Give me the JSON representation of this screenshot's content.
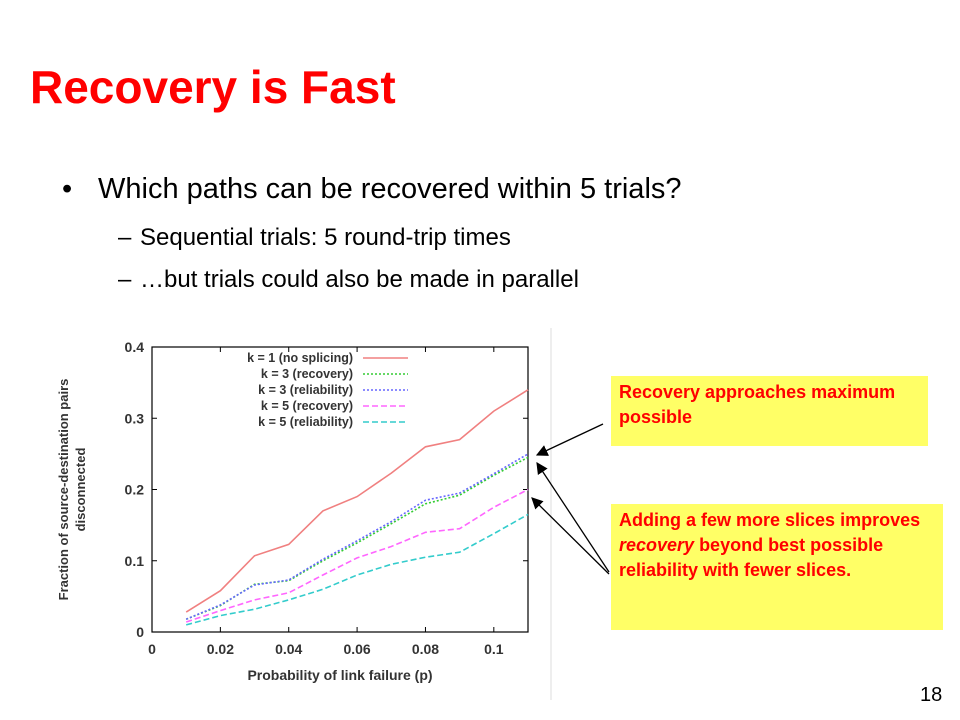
{
  "slide": {
    "title": "Recovery is Fast",
    "bullet": "Which paths can be recovered within 5 trials?",
    "bullet_marker": "•",
    "sub_marker": "–",
    "subbullets": [
      "Sequential trials: 5 round-trip times",
      "…but trials could also be made in parallel"
    ],
    "callout1": "Recovery approaches maximum possible",
    "callout2_pre": "Adding a few more slices improves ",
    "callout2_em": "recovery",
    "callout2_post": " beyond best possible reliability with fewer slices.",
    "page_number": "18"
  },
  "chart_data": {
    "type": "line",
    "xlabel": "Probability of link failure (p)",
    "ylabel": "Fraction of source-destination pairs disconnected",
    "ylabel_lines": [
      "Fraction of source-destination pairs",
      "disconnected"
    ],
    "xlim": [
      0,
      0.11
    ],
    "ylim": [
      0,
      0.4
    ],
    "xticks": [
      "0",
      "0.02",
      "0.04",
      "0.06",
      "0.08",
      "0.1"
    ],
    "yticks": [
      "0",
      "0.1",
      "0.2",
      "0.3",
      "0.4"
    ],
    "x": [
      0.01,
      0.02,
      0.03,
      0.04,
      0.05,
      0.06,
      0.07,
      0.08,
      0.09,
      0.1,
      0.11
    ],
    "legend_position": "top-left",
    "series": [
      {
        "name": "k = 1 (no splicing)",
        "color": "#f08080",
        "dash": "solid",
        "values": [
          0.028,
          0.058,
          0.107,
          0.123,
          0.17,
          0.19,
          0.223,
          0.26,
          0.27,
          0.31,
          0.34
        ]
      },
      {
        "name": "k = 3 (recovery)",
        "color": "#33cc33",
        "dash": "dotted",
        "values": [
          0.018,
          0.037,
          0.067,
          0.072,
          0.1,
          0.125,
          0.152,
          0.18,
          0.192,
          0.22,
          0.245
        ]
      },
      {
        "name": "k = 3 (reliability)",
        "color": "#6666ff",
        "dash": "dotted",
        "values": [
          0.018,
          0.038,
          0.066,
          0.073,
          0.102,
          0.128,
          0.155,
          0.185,
          0.195,
          0.222,
          0.25
        ]
      },
      {
        "name": "k = 5 (recovery)",
        "color": "#ff66ff",
        "dash": "dashed",
        "values": [
          0.014,
          0.03,
          0.045,
          0.055,
          0.08,
          0.104,
          0.12,
          0.14,
          0.145,
          0.175,
          0.2
        ]
      },
      {
        "name": "k = 5 (reliability)",
        "color": "#33cccc",
        "dash": "dashed",
        "values": [
          0.01,
          0.023,
          0.032,
          0.045,
          0.06,
          0.08,
          0.095,
          0.105,
          0.112,
          0.138,
          0.165
        ]
      }
    ]
  }
}
